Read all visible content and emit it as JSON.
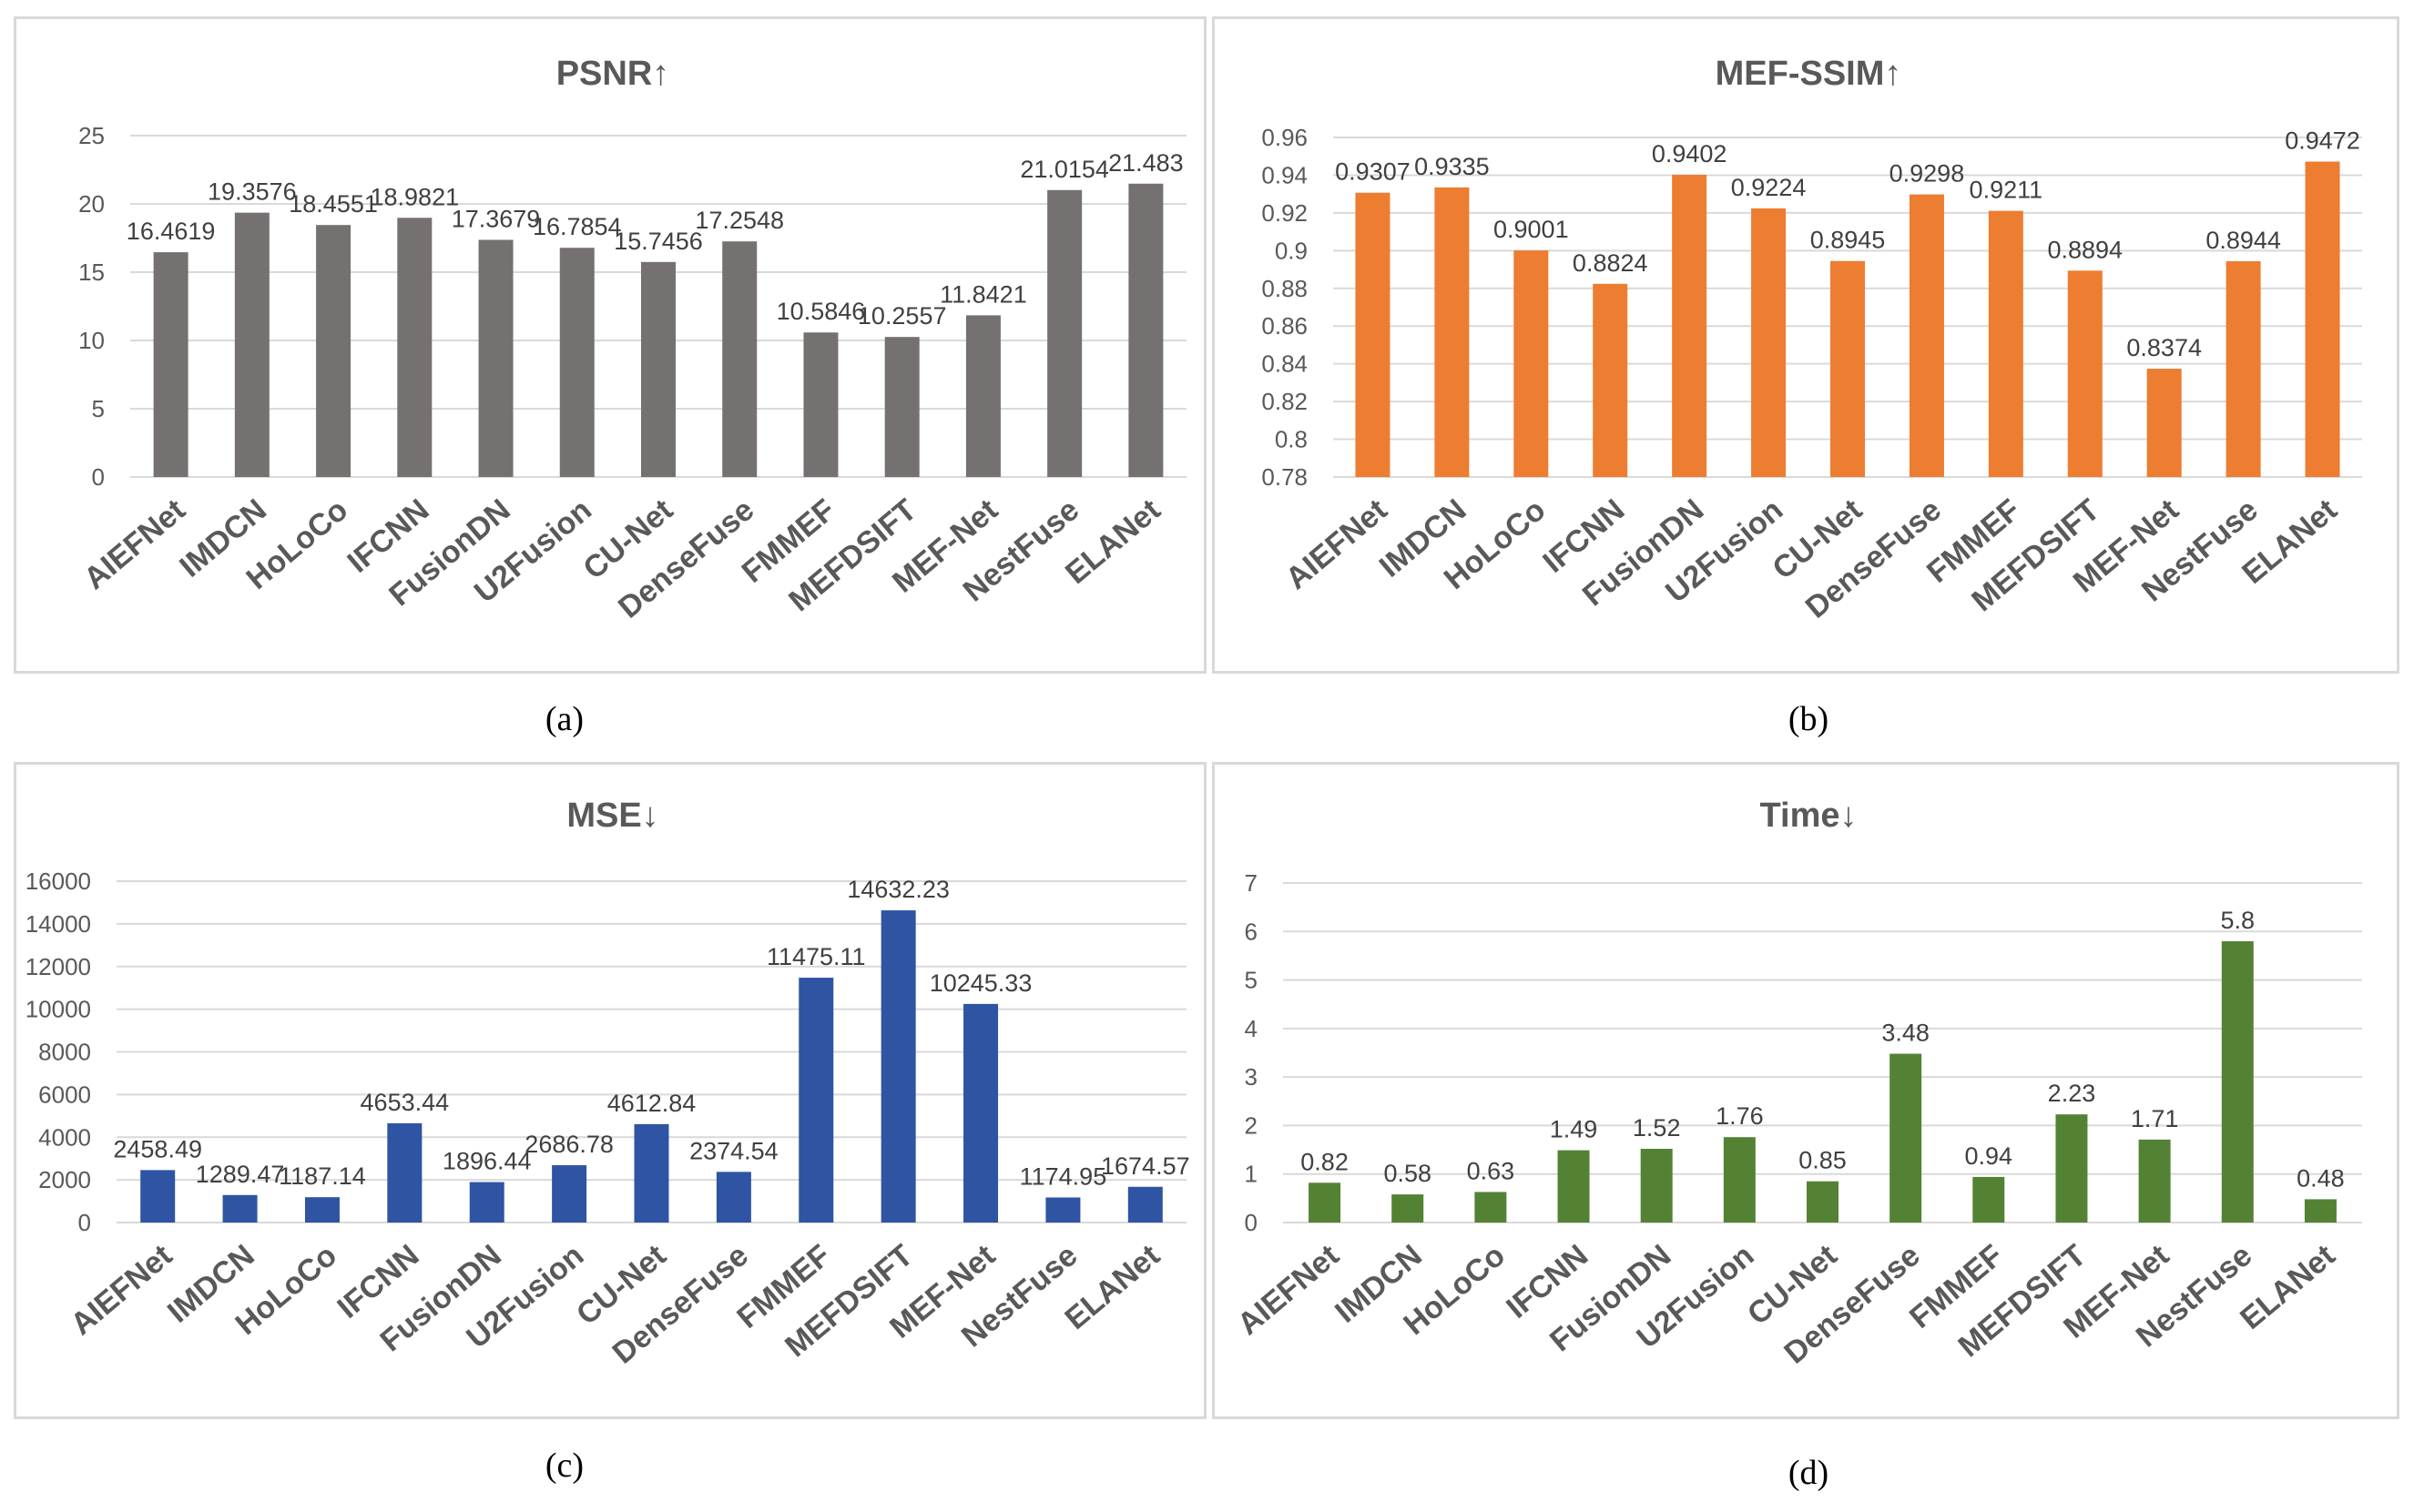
{
  "chart_data": [
    {
      "type": "bar",
      "title": "PSNR↑",
      "caption": "(a)",
      "color": "#767171",
      "categories": [
        "AIEFNet",
        "IMDCN",
        "HoLoCo",
        "IFCNN",
        "FusionDN",
        "U2Fusion",
        "CU-Net",
        "DenseFuse",
        "FMMEF",
        "MEFDSIFT",
        "MEF-Net",
        "NestFuse",
        "ELANet"
      ],
      "values": [
        16.4619,
        19.3576,
        18.4551,
        18.9821,
        17.3679,
        16.7854,
        15.7456,
        17.2548,
        10.5846,
        10.2557,
        11.8421,
        21.0154,
        21.483
      ],
      "labels": [
        "16.4619",
        "19.3576",
        "18.4551",
        "18.9821",
        "17.3679",
        "16.7854",
        "15.7456",
        "17.2548",
        "10.5846",
        "10.2557",
        "11.8421",
        "21.0154",
        "21.483"
      ],
      "ylim": [
        0,
        25
      ],
      "yticks": [
        "0",
        "5",
        "10",
        "15",
        "20",
        "25"
      ],
      "xlabel": "",
      "ylabel": ""
    },
    {
      "type": "bar",
      "title": "MEF-SSIM↑",
      "caption": "(b)",
      "color": "#ED7D31",
      "categories": [
        "AIEFNet",
        "IMDCN",
        "HoLoCo",
        "IFCNN",
        "FusionDN",
        "U2Fusion",
        "CU-Net",
        "DenseFuse",
        "FMMEF",
        "MEFDSIFT",
        "MEF-Net",
        "NestFuse",
        "ELANet"
      ],
      "values": [
        0.9307,
        0.9335,
        0.9001,
        0.8824,
        0.9402,
        0.9224,
        0.8945,
        0.9298,
        0.9211,
        0.8894,
        0.8374,
        0.8944,
        0.9472
      ],
      "labels": [
        "0.9307",
        "0.9335",
        "0.9001",
        "0.8824",
        "0.9402",
        "0.9224",
        "0.8945",
        "0.9298",
        "0.9211",
        "0.8894",
        "0.8374",
        "0.8944",
        "0.9472"
      ],
      "ylim": [
        0.78,
        0.96
      ],
      "yticks": [
        "0.78",
        "0.8",
        "0.82",
        "0.84",
        "0.86",
        "0.88",
        "0.9",
        "0.92",
        "0.94",
        "0.96"
      ],
      "xlabel": "",
      "ylabel": ""
    },
    {
      "type": "bar",
      "title": "MSE↓",
      "caption": "(c)",
      "color": "#2F54A3",
      "categories": [
        "AIEFNet",
        "IMDCN",
        "HoLoCo",
        "IFCNN",
        "FusionDN",
        "U2Fusion",
        "CU-Net",
        "DenseFuse",
        "FMMEF",
        "MEFDSIFT",
        "MEF-Net",
        "NestFuse",
        "ELANet"
      ],
      "values": [
        2458.49,
        1289.47,
        1187.14,
        4653.44,
        1896.44,
        2686.78,
        4612.84,
        2374.54,
        11475.11,
        14632.23,
        10245.33,
        1174.95,
        1674.57
      ],
      "labels": [
        "2458.49",
        "1289.47",
        "1187.14",
        "4653.44",
        "1896.44",
        "2686.78",
        "4612.84",
        "2374.54",
        "11475.11",
        "14632.23",
        "10245.33",
        "1174.95",
        "1674.57"
      ],
      "ylim": [
        0,
        16000
      ],
      "yticks": [
        "0",
        "2000",
        "4000",
        "6000",
        "8000",
        "10000",
        "12000",
        "14000",
        "16000"
      ],
      "xlabel": "",
      "ylabel": ""
    },
    {
      "type": "bar",
      "title": "Time↓",
      "caption": "(d)",
      "color": "#548235",
      "categories": [
        "AIEFNet",
        "IMDCN",
        "HoLoCo",
        "IFCNN",
        "FusionDN",
        "U2Fusion",
        "CU-Net",
        "DenseFuse",
        "FMMEF",
        "MEFDSIFT",
        "MEF-Net",
        "NestFuse",
        "ELANet"
      ],
      "values": [
        0.82,
        0.58,
        0.63,
        1.49,
        1.52,
        1.76,
        0.85,
        3.48,
        0.94,
        2.23,
        1.71,
        5.8,
        0.48
      ],
      "labels": [
        "0.82",
        "0.58",
        "0.63",
        "1.49",
        "1.52",
        "1.76",
        "0.85",
        "3.48",
        "0.94",
        "2.23",
        "1.71",
        "5.8",
        "0.48"
      ],
      "ylim": [
        0,
        7
      ],
      "yticks": [
        "0",
        "1",
        "2",
        "3",
        "4",
        "5",
        "6",
        "7"
      ],
      "xlabel": "",
      "ylabel": ""
    }
  ]
}
